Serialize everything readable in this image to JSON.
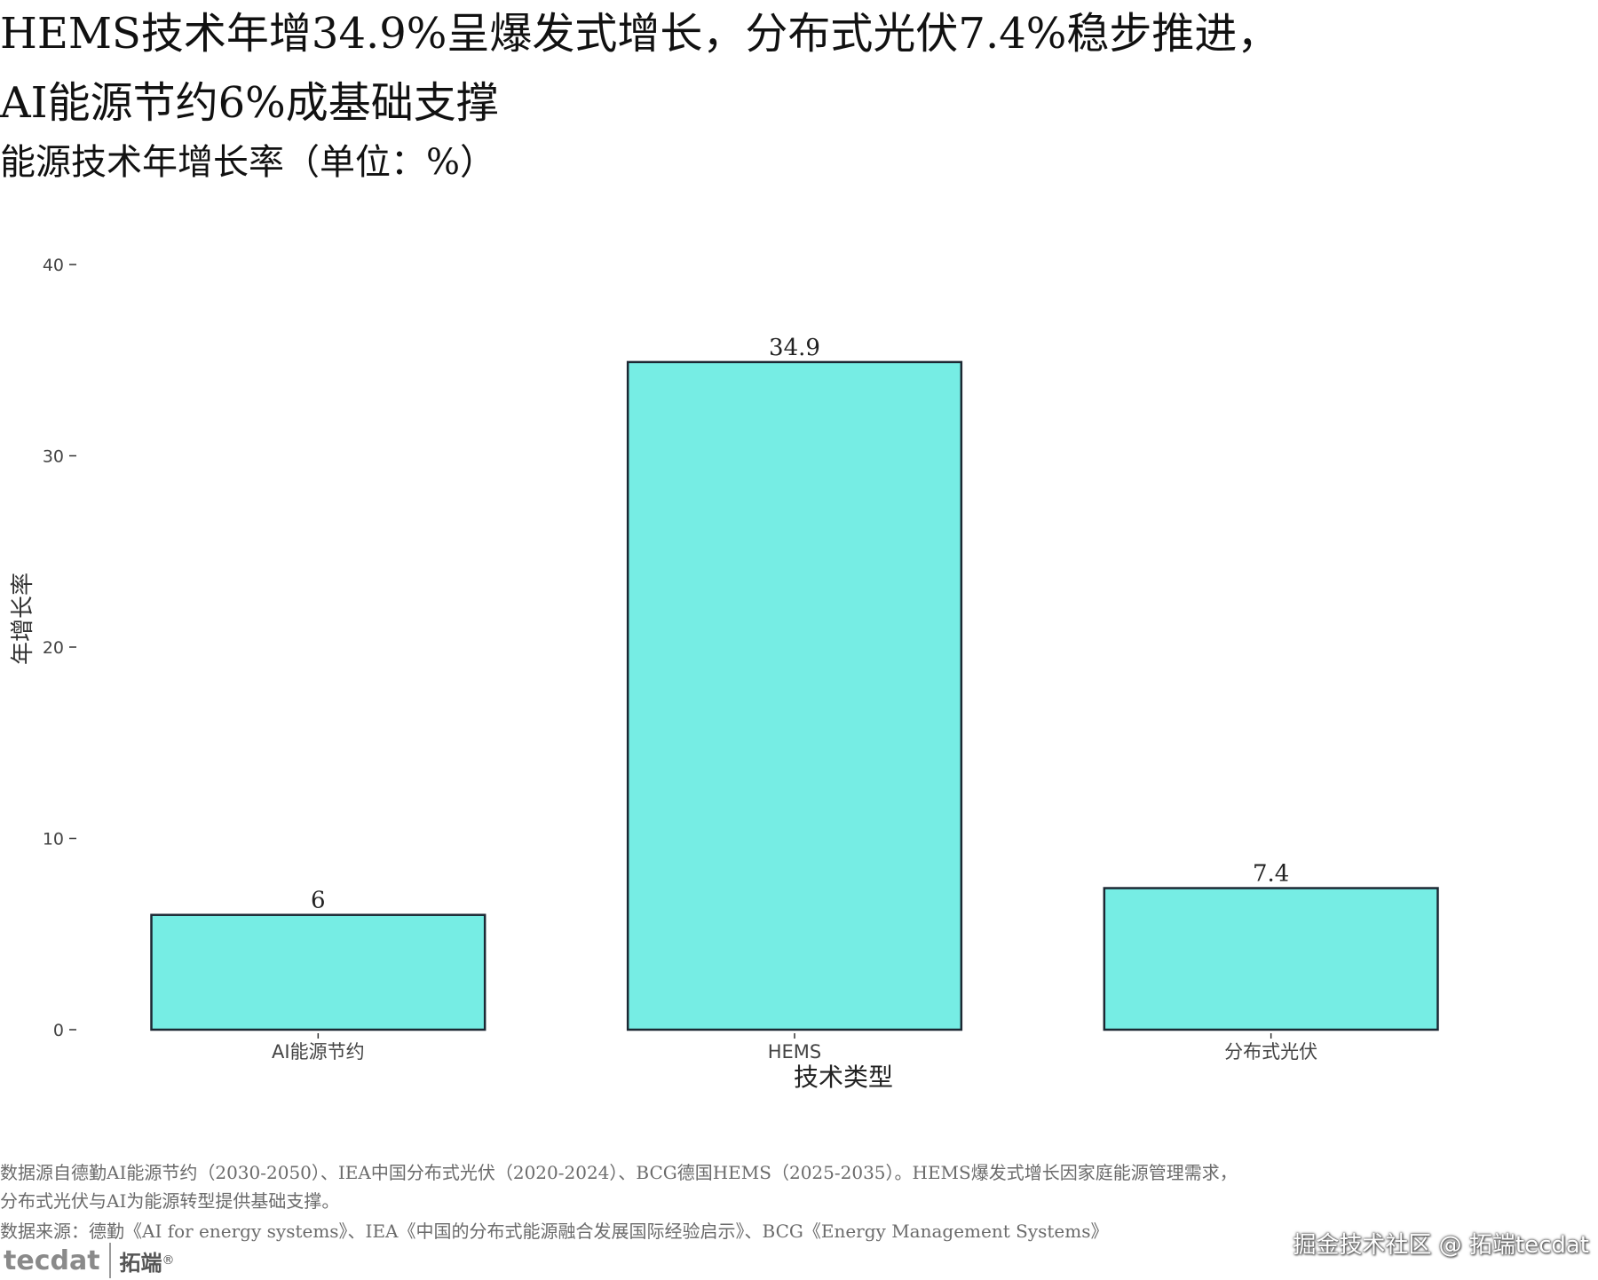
{
  "title_line1": "HEMS技术年增34.9%呈爆发式增长，分布式光伏7.4%稳步推进，",
  "title_line2": "AI能源节约6%成基础支撑",
  "subtitle": "能源技术年增长率（单位：%）",
  "chart_data": {
    "type": "bar",
    "categories": [
      "AI能源节约",
      "HEMS",
      "分布式光伏"
    ],
    "values": [
      6,
      34.9,
      7.4
    ],
    "data_labels": [
      "6",
      "34.9",
      "7.4"
    ],
    "xlabel": "技术类型",
    "ylabel": "年增长率",
    "ylim": [
      0,
      40
    ],
    "yticks": [
      0,
      10,
      20,
      30,
      40
    ],
    "grid": false,
    "legend": "none",
    "bar_color": "#76ede4",
    "bar_edge_color": "#1c2833"
  },
  "notes": {
    "line1": "数据源自德勤AI能源节约（2030-2050）、IEA中国分布式光伏（2020-2024）、BCG德国HEMS（2025-2035）。HEMS爆发式增长因家庭能源管理需求，",
    "line2": "分布式光伏与AI为能源转型提供基础支撑。",
    "line3": "数据来源：德勤《AI for energy systems》、IEA《中国的分布式能源融合发展国际经验启示》、BCG《Energy Management Systems》"
  },
  "logo": {
    "mark": "tecdat",
    "cn": "拓端",
    "reg": "®"
  },
  "watermark": "掘金技术社区 @ 拓端tecdat"
}
